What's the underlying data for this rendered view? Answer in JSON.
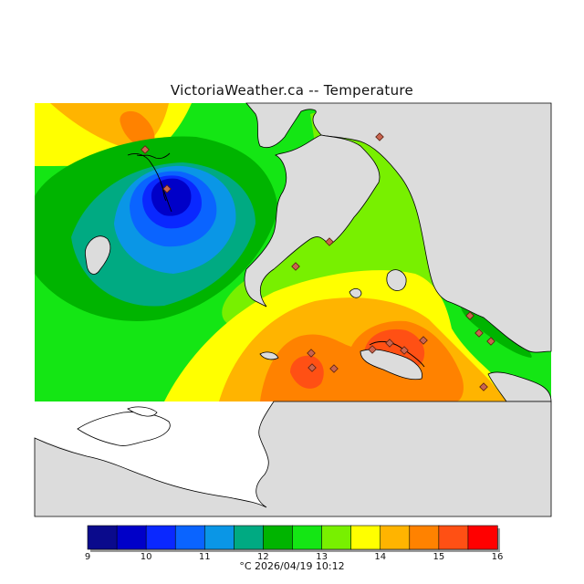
{
  "title": "VictoriaWeather.ca -- Temperature",
  "legend": {
    "units_and_time": "°C  2026/04/19 10:12",
    "ticks": [
      "9",
      "10",
      "11",
      "12",
      "13",
      "14",
      "15",
      "16"
    ],
    "colors": [
      "#0a0a8c",
      "#0000c8",
      "#0a28ff",
      "#0a64ff",
      "#0a96e6",
      "#00aa82",
      "#00b400",
      "#14e614",
      "#78f000",
      "#ffff00",
      "#ffb400",
      "#ff8200",
      "#ff5014",
      "#ff0000"
    ]
  },
  "colors": {
    "no_data_land": "#dcdcdc",
    "water_no_data": "#ffffff",
    "coastline": "#000000",
    "station_marker": "#c86450"
  },
  "chart_data": {
    "type": "heatmap",
    "variable": "Temperature",
    "units": "°C",
    "scale_range": [
      9,
      16
    ],
    "scale_step": 0.5,
    "features": {
      "cold_minimum_c": 9.5,
      "warm_maxima_c": [
        15.5,
        15.5,
        15.0
      ],
      "northwest_warm_c": 14.5
    }
  }
}
